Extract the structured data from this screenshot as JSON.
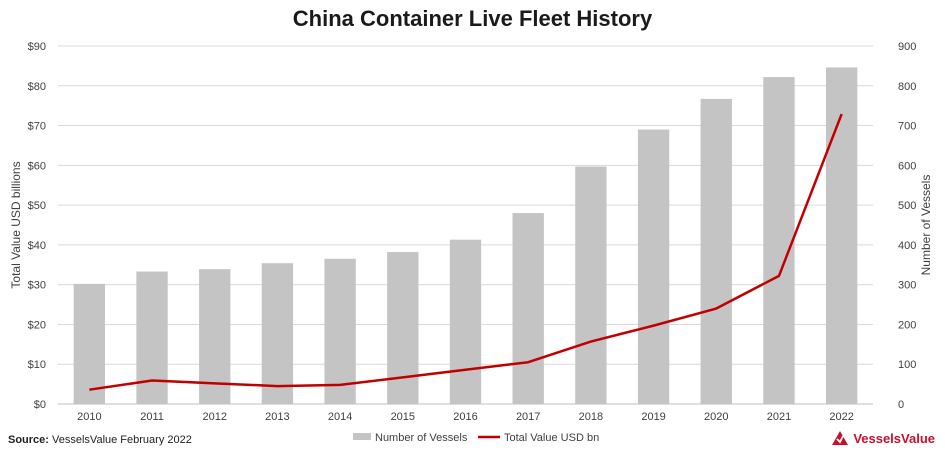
{
  "chart_data": {
    "type": "bar",
    "title": "China Container Live Fleet History",
    "categories": [
      "2010",
      "2011",
      "2012",
      "2013",
      "2014",
      "2015",
      "2016",
      "2017",
      "2018",
      "2019",
      "2020",
      "2021",
      "2022"
    ],
    "series": [
      {
        "name": "Number of Vessels",
        "type": "bar",
        "axis": "right",
        "color": "#c4c4c4",
        "values": [
          302,
          333,
          339,
          354,
          365,
          382,
          413,
          480,
          597,
          690,
          767,
          822,
          846
        ]
      },
      {
        "name": "Total Value USD bn",
        "type": "line",
        "axis": "left",
        "color": "#c00000",
        "values": [
          3.6,
          5.9,
          5.2,
          4.5,
          4.8,
          6.7,
          8.6,
          10.5,
          15.7,
          19.7,
          24.0,
          32.2,
          72.9
        ]
      }
    ],
    "ylabel_left": "Total Value USD billions",
    "ylabel_right": "Number of Vessels",
    "ylim_left": [
      0,
      90
    ],
    "ylim_right": [
      0,
      900
    ],
    "left_ticks": [
      "$0",
      "$10",
      "$20",
      "$30",
      "$40",
      "$50",
      "$60",
      "$70",
      "$80",
      "$90"
    ],
    "right_ticks": [
      "0",
      "100",
      "200",
      "300",
      "400",
      "500",
      "600",
      "700",
      "800",
      "900"
    ],
    "grid": true,
    "legend_position": "bottom"
  },
  "footer": {
    "source_label": "Source:",
    "source_text": " VesselsValue February 2022",
    "brand": "VesselsValue"
  }
}
